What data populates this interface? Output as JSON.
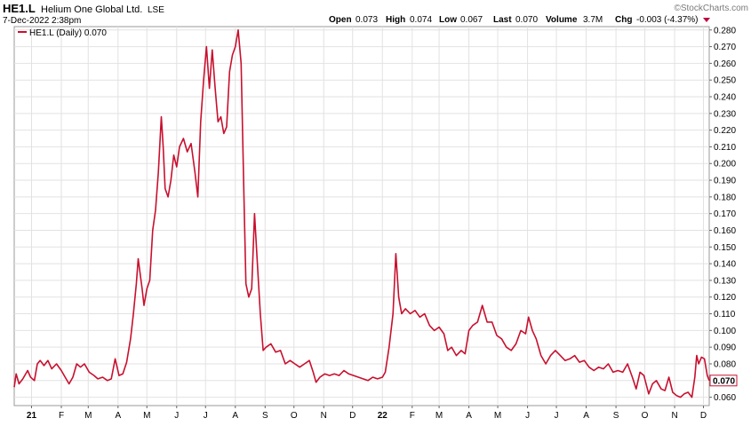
{
  "header": {
    "ticker": "HE1.L",
    "company": "Helium One Global Ltd.",
    "exchange": "LSE",
    "timestamp": "7-Dec-2022 2:38pm",
    "watermark": "©StockCharts.com"
  },
  "quote": {
    "open_label": "Open",
    "open": "0.073",
    "high_label": "High",
    "high": "0.074",
    "low_label": "Low",
    "low": "0.067",
    "last_label": "Last",
    "last": "0.070",
    "volume_label": "Volume",
    "volume": "3.7M",
    "chg_label": "Chg",
    "chg": "-0.003 (-4.37%)",
    "chg_color": "#c0003c"
  },
  "legend": {
    "label": "HE1.L (Daily) 0.070",
    "color": "#c8102e"
  },
  "chart_data": {
    "type": "line",
    "ylim": [
      0.055,
      0.282
    ],
    "y_ticks": [
      0.06,
      0.07,
      0.08,
      0.09,
      0.1,
      0.11,
      0.12,
      0.13,
      0.14,
      0.15,
      0.16,
      0.17,
      0.18,
      0.19,
      0.2,
      0.21,
      0.22,
      0.23,
      0.24,
      0.25,
      0.26,
      0.27,
      0.28
    ],
    "y_tick_labels": [
      "0.060",
      "0.070",
      "0.080",
      "0.090",
      "0.100",
      "0.110",
      "0.120",
      "0.130",
      "0.140",
      "0.150",
      "0.160",
      "0.170",
      "0.180",
      "0.190",
      "0.200",
      "0.210",
      "0.220",
      "0.230",
      "0.240",
      "0.250",
      "0.260",
      "0.270",
      "0.280"
    ],
    "last_value": 0.07,
    "last_label": "0.070",
    "x_start": "2020-12-14",
    "x_end": "2022-12-07",
    "months": [
      {
        "label": "21",
        "date": "2021-01-01",
        "bold": true
      },
      {
        "label": "F",
        "date": "2021-02-01"
      },
      {
        "label": "M",
        "date": "2021-03-01"
      },
      {
        "label": "A",
        "date": "2021-04-01"
      },
      {
        "label": "M",
        "date": "2021-05-01"
      },
      {
        "label": "J",
        "date": "2021-06-01"
      },
      {
        "label": "J",
        "date": "2021-07-01"
      },
      {
        "label": "A",
        "date": "2021-08-01"
      },
      {
        "label": "S",
        "date": "2021-09-01"
      },
      {
        "label": "O",
        "date": "2021-10-01"
      },
      {
        "label": "N",
        "date": "2021-11-01"
      },
      {
        "label": "D",
        "date": "2021-12-01"
      },
      {
        "label": "22",
        "date": "2022-01-01",
        "bold": true
      },
      {
        "label": "F",
        "date": "2022-02-01"
      },
      {
        "label": "M",
        "date": "2022-03-01"
      },
      {
        "label": "A",
        "date": "2022-04-01"
      },
      {
        "label": "M",
        "date": "2022-05-01"
      },
      {
        "label": "J",
        "date": "2022-06-01"
      },
      {
        "label": "J",
        "date": "2022-07-01"
      },
      {
        "label": "A",
        "date": "2022-08-01"
      },
      {
        "label": "S",
        "date": "2022-09-01"
      },
      {
        "label": "O",
        "date": "2022-10-01"
      },
      {
        "label": "N",
        "date": "2022-11-01"
      },
      {
        "label": "D",
        "date": "2022-12-01"
      }
    ],
    "series": [
      {
        "color": "#c8102e",
        "points": [
          [
            "2020-12-14",
            0.066
          ],
          [
            "2020-12-16",
            0.074
          ],
          [
            "2020-12-19",
            0.068
          ],
          [
            "2020-12-23",
            0.071
          ],
          [
            "2020-12-28",
            0.076
          ],
          [
            "2020-12-31",
            0.072
          ],
          [
            "2021-01-04",
            0.07
          ],
          [
            "2021-01-07",
            0.08
          ],
          [
            "2021-01-10",
            0.082
          ],
          [
            "2021-01-14",
            0.079
          ],
          [
            "2021-01-18",
            0.082
          ],
          [
            "2021-01-22",
            0.077
          ],
          [
            "2021-01-27",
            0.08
          ],
          [
            "2021-02-01",
            0.076
          ],
          [
            "2021-02-05",
            0.072
          ],
          [
            "2021-02-09",
            0.068
          ],
          [
            "2021-02-13",
            0.072
          ],
          [
            "2021-02-17",
            0.08
          ],
          [
            "2021-02-21",
            0.078
          ],
          [
            "2021-02-25",
            0.08
          ],
          [
            "2021-03-02",
            0.075
          ],
          [
            "2021-03-07",
            0.073
          ],
          [
            "2021-03-11",
            0.071
          ],
          [
            "2021-03-16",
            0.072
          ],
          [
            "2021-03-21",
            0.07
          ],
          [
            "2021-03-25",
            0.071
          ],
          [
            "2021-03-29",
            0.083
          ],
          [
            "2021-04-02",
            0.073
          ],
          [
            "2021-04-06",
            0.074
          ],
          [
            "2021-04-10",
            0.081
          ],
          [
            "2021-04-14",
            0.095
          ],
          [
            "2021-04-17",
            0.11
          ],
          [
            "2021-04-20",
            0.128
          ],
          [
            "2021-04-22",
            0.143
          ],
          [
            "2021-04-26",
            0.125
          ],
          [
            "2021-04-28",
            0.115
          ],
          [
            "2021-05-01",
            0.125
          ],
          [
            "2021-05-04",
            0.13
          ],
          [
            "2021-05-07",
            0.16
          ],
          [
            "2021-05-10",
            0.172
          ],
          [
            "2021-05-13",
            0.195
          ],
          [
            "2021-05-16",
            0.228
          ],
          [
            "2021-05-18",
            0.21
          ],
          [
            "2021-05-20",
            0.185
          ],
          [
            "2021-05-23",
            0.18
          ],
          [
            "2021-05-26",
            0.19
          ],
          [
            "2021-05-29",
            0.205
          ],
          [
            "2021-06-01",
            0.198
          ],
          [
            "2021-06-04",
            0.21
          ],
          [
            "2021-06-08",
            0.215
          ],
          [
            "2021-06-12",
            0.207
          ],
          [
            "2021-06-16",
            0.212
          ],
          [
            "2021-06-20",
            0.195
          ],
          [
            "2021-06-23",
            0.18
          ],
          [
            "2021-06-26",
            0.225
          ],
          [
            "2021-06-29",
            0.25
          ],
          [
            "2021-07-02",
            0.27
          ],
          [
            "2021-07-05",
            0.245
          ],
          [
            "2021-07-08",
            0.268
          ],
          [
            "2021-07-11",
            0.245
          ],
          [
            "2021-07-14",
            0.225
          ],
          [
            "2021-07-17",
            0.228
          ],
          [
            "2021-07-20",
            0.218
          ],
          [
            "2021-07-23",
            0.222
          ],
          [
            "2021-07-26",
            0.255
          ],
          [
            "2021-07-29",
            0.265
          ],
          [
            "2021-08-01",
            0.27
          ],
          [
            "2021-08-04",
            0.28
          ],
          [
            "2021-08-07",
            0.26
          ],
          [
            "2021-08-10",
            0.18
          ],
          [
            "2021-08-12",
            0.128
          ],
          [
            "2021-08-15",
            0.12
          ],
          [
            "2021-08-18",
            0.125
          ],
          [
            "2021-08-21",
            0.17
          ],
          [
            "2021-08-24",
            0.14
          ],
          [
            "2021-08-27",
            0.11
          ],
          [
            "2021-08-30",
            0.088
          ],
          [
            "2021-09-02",
            0.09
          ],
          [
            "2021-09-07",
            0.092
          ],
          [
            "2021-09-12",
            0.087
          ],
          [
            "2021-09-17",
            0.088
          ],
          [
            "2021-09-22",
            0.08
          ],
          [
            "2021-09-27",
            0.082
          ],
          [
            "2021-10-02",
            0.08
          ],
          [
            "2021-10-07",
            0.078
          ],
          [
            "2021-10-12",
            0.08
          ],
          [
            "2021-10-17",
            0.082
          ],
          [
            "2021-10-21",
            0.075
          ],
          [
            "2021-10-24",
            0.069
          ],
          [
            "2021-10-28",
            0.072
          ],
          [
            "2021-11-02",
            0.074
          ],
          [
            "2021-11-07",
            0.073
          ],
          [
            "2021-11-12",
            0.074
          ],
          [
            "2021-11-17",
            0.073
          ],
          [
            "2021-11-22",
            0.076
          ],
          [
            "2021-11-27",
            0.074
          ],
          [
            "2021-12-02",
            0.073
          ],
          [
            "2021-12-07",
            0.072
          ],
          [
            "2021-12-12",
            0.071
          ],
          [
            "2021-12-17",
            0.07
          ],
          [
            "2021-12-22",
            0.072
          ],
          [
            "2021-12-27",
            0.071
          ],
          [
            "2022-01-01",
            0.072
          ],
          [
            "2022-01-04",
            0.075
          ],
          [
            "2022-01-08",
            0.09
          ],
          [
            "2022-01-12",
            0.11
          ],
          [
            "2022-01-15",
            0.146
          ],
          [
            "2022-01-18",
            0.12
          ],
          [
            "2022-01-21",
            0.11
          ],
          [
            "2022-01-25",
            0.113
          ],
          [
            "2022-01-30",
            0.11
          ],
          [
            "2022-02-04",
            0.112
          ],
          [
            "2022-02-09",
            0.108
          ],
          [
            "2022-02-14",
            0.11
          ],
          [
            "2022-02-19",
            0.103
          ],
          [
            "2022-02-24",
            0.1
          ],
          [
            "2022-03-01",
            0.102
          ],
          [
            "2022-03-06",
            0.098
          ],
          [
            "2022-03-10",
            0.088
          ],
          [
            "2022-03-14",
            0.09
          ],
          [
            "2022-03-19",
            0.085
          ],
          [
            "2022-03-24",
            0.088
          ],
          [
            "2022-03-28",
            0.086
          ],
          [
            "2022-04-01",
            0.1
          ],
          [
            "2022-04-05",
            0.103
          ],
          [
            "2022-04-10",
            0.105
          ],
          [
            "2022-04-15",
            0.115
          ],
          [
            "2022-04-20",
            0.105
          ],
          [
            "2022-04-25",
            0.105
          ],
          [
            "2022-04-30",
            0.097
          ],
          [
            "2022-05-05",
            0.095
          ],
          [
            "2022-05-10",
            0.09
          ],
          [
            "2022-05-15",
            0.088
          ],
          [
            "2022-05-20",
            0.092
          ],
          [
            "2022-05-25",
            0.1
          ],
          [
            "2022-05-30",
            0.098
          ],
          [
            "2022-06-02",
            0.108
          ],
          [
            "2022-06-06",
            0.1
          ],
          [
            "2022-06-10",
            0.095
          ],
          [
            "2022-06-15",
            0.085
          ],
          [
            "2022-06-20",
            0.08
          ],
          [
            "2022-06-25",
            0.085
          ],
          [
            "2022-06-30",
            0.088
          ],
          [
            "2022-07-05",
            0.085
          ],
          [
            "2022-07-10",
            0.082
          ],
          [
            "2022-07-15",
            0.083
          ],
          [
            "2022-07-20",
            0.085
          ],
          [
            "2022-07-25",
            0.081
          ],
          [
            "2022-07-30",
            0.082
          ],
          [
            "2022-08-04",
            0.078
          ],
          [
            "2022-08-09",
            0.076
          ],
          [
            "2022-08-14",
            0.078
          ],
          [
            "2022-08-19",
            0.077
          ],
          [
            "2022-08-24",
            0.08
          ],
          [
            "2022-08-29",
            0.075
          ],
          [
            "2022-09-03",
            0.076
          ],
          [
            "2022-09-08",
            0.075
          ],
          [
            "2022-09-13",
            0.08
          ],
          [
            "2022-09-18",
            0.072
          ],
          [
            "2022-09-22",
            0.065
          ],
          [
            "2022-09-26",
            0.075
          ],
          [
            "2022-09-30",
            0.073
          ],
          [
            "2022-10-05",
            0.062
          ],
          [
            "2022-10-09",
            0.068
          ],
          [
            "2022-10-13",
            0.07
          ],
          [
            "2022-10-18",
            0.065
          ],
          [
            "2022-10-22",
            0.064
          ],
          [
            "2022-10-26",
            0.072
          ],
          [
            "2022-10-30",
            0.063
          ],
          [
            "2022-11-03",
            0.061
          ],
          [
            "2022-11-07",
            0.06
          ],
          [
            "2022-11-11",
            0.062
          ],
          [
            "2022-11-15",
            0.063
          ],
          [
            "2022-11-19",
            0.06
          ],
          [
            "2022-11-22",
            0.072
          ],
          [
            "2022-11-24",
            0.085
          ],
          [
            "2022-11-26",
            0.08
          ],
          [
            "2022-11-29",
            0.084
          ],
          [
            "2022-12-02",
            0.083
          ],
          [
            "2022-12-05",
            0.073
          ],
          [
            "2022-12-07",
            0.07
          ]
        ]
      }
    ]
  }
}
